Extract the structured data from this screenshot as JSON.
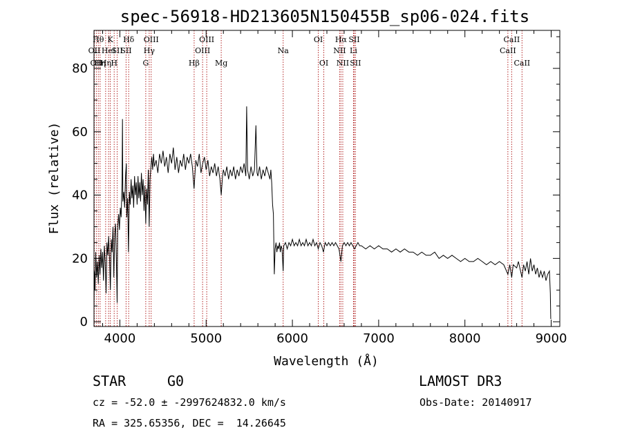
{
  "chart_data": {
    "type": "line",
    "title": "spec-56918-HD213605N150455B_sp06-024.fits",
    "xlabel": "Wavelength (Å)",
    "ylabel": "Flux (relative)",
    "xlim": [
      3700,
      9100
    ],
    "ylim": [
      -1.5,
      92
    ],
    "xticks": [
      4000,
      5000,
      6000,
      7000,
      8000,
      9000
    ],
    "yticks": [
      0,
      20,
      40,
      60,
      80
    ],
    "grid": false,
    "series": [
      {
        "values": [
          [
            3700,
            4
          ],
          [
            3705,
            16
          ],
          [
            3712,
            10
          ],
          [
            3720,
            22
          ],
          [
            3730,
            14
          ],
          [
            3740,
            19
          ],
          [
            3750,
            12
          ],
          [
            3760,
            21
          ],
          [
            3770,
            15
          ],
          [
            3780,
            23
          ],
          [
            3790,
            17
          ],
          [
            3800,
            22
          ],
          [
            3810,
            13
          ],
          [
            3820,
            24
          ],
          [
            3830,
            19
          ],
          [
            3840,
            9
          ],
          [
            3850,
            25
          ],
          [
            3860,
            21
          ],
          [
            3870,
            27
          ],
          [
            3880,
            20
          ],
          [
            3890,
            10
          ],
          [
            3900,
            26
          ],
          [
            3910,
            22
          ],
          [
            3920,
            30
          ],
          [
            3930,
            14
          ],
          [
            3940,
            28
          ],
          [
            3950,
            31
          ],
          [
            3960,
            18
          ],
          [
            3968,
            6
          ],
          [
            3975,
            30
          ],
          [
            3985,
            34
          ],
          [
            3995,
            29
          ],
          [
            4005,
            36
          ],
          [
            4015,
            33
          ],
          [
            4025,
            44
          ],
          [
            4030,
            64
          ],
          [
            4035,
            38
          ],
          [
            4045,
            41
          ],
          [
            4055,
            36
          ],
          [
            4065,
            46
          ],
          [
            4075,
            50
          ],
          [
            4080,
            33
          ],
          [
            4090,
            39
          ],
          [
            4100,
            22
          ],
          [
            4110,
            41
          ],
          [
            4120,
            37
          ],
          [
            4130,
            45
          ],
          [
            4140,
            39
          ],
          [
            4150,
            43
          ],
          [
            4160,
            36
          ],
          [
            4170,
            46
          ],
          [
            4180,
            40
          ],
          [
            4190,
            44
          ],
          [
            4200,
            37
          ],
          [
            4210,
            46
          ],
          [
            4220,
            39
          ],
          [
            4230,
            44
          ],
          [
            4240,
            38
          ],
          [
            4250,
            47
          ],
          [
            4260,
            40
          ],
          [
            4270,
            45
          ],
          [
            4280,
            35
          ],
          [
            4290,
            43
          ],
          [
            4300,
            31
          ],
          [
            4310,
            42
          ],
          [
            4320,
            37
          ],
          [
            4330,
            48
          ],
          [
            4340,
            30
          ],
          [
            4350,
            45
          ],
          [
            4360,
            49
          ],
          [
            4370,
            52
          ],
          [
            4380,
            48
          ],
          [
            4390,
            53
          ],
          [
            4400,
            49
          ],
          [
            4420,
            51
          ],
          [
            4440,
            47
          ],
          [
            4460,
            53
          ],
          [
            4480,
            50
          ],
          [
            4500,
            54
          ],
          [
            4520,
            49
          ],
          [
            4540,
            52
          ],
          [
            4560,
            47
          ],
          [
            4580,
            53
          ],
          [
            4600,
            50
          ],
          [
            4620,
            55
          ],
          [
            4640,
            48
          ],
          [
            4660,
            52
          ],
          [
            4680,
            47
          ],
          [
            4700,
            51
          ],
          [
            4720,
            49
          ],
          [
            4740,
            53
          ],
          [
            4760,
            48
          ],
          [
            4780,
            52
          ],
          [
            4800,
            50
          ],
          [
            4820,
            53
          ],
          [
            4840,
            49
          ],
          [
            4860,
            42
          ],
          [
            4880,
            51
          ],
          [
            4900,
            49
          ],
          [
            4920,
            53
          ],
          [
            4940,
            47
          ],
          [
            4960,
            50
          ],
          [
            4980,
            52
          ],
          [
            5000,
            48
          ],
          [
            5020,
            51
          ],
          [
            5040,
            46
          ],
          [
            5060,
            49
          ],
          [
            5080,
            47
          ],
          [
            5100,
            50
          ],
          [
            5120,
            46
          ],
          [
            5140,
            49
          ],
          [
            5160,
            45
          ],
          [
            5175,
            40
          ],
          [
            5190,
            46
          ],
          [
            5200,
            48
          ],
          [
            5220,
            46
          ],
          [
            5240,
            49
          ],
          [
            5260,
            45
          ],
          [
            5280,
            48
          ],
          [
            5300,
            46
          ],
          [
            5320,
            49
          ],
          [
            5340,
            45
          ],
          [
            5360,
            48
          ],
          [
            5380,
            46
          ],
          [
            5400,
            49
          ],
          [
            5420,
            47
          ],
          [
            5440,
            50
          ],
          [
            5460,
            46
          ],
          [
            5470,
            68
          ],
          [
            5480,
            48
          ],
          [
            5500,
            45
          ],
          [
            5520,
            49
          ],
          [
            5540,
            46
          ],
          [
            5560,
            48
          ],
          [
            5577,
            62
          ],
          [
            5590,
            47
          ],
          [
            5600,
            46
          ],
          [
            5620,
            49
          ],
          [
            5640,
            45
          ],
          [
            5660,
            48
          ],
          [
            5680,
            46
          ],
          [
            5700,
            49
          ],
          [
            5720,
            47
          ],
          [
            5740,
            45
          ],
          [
            5750,
            48
          ],
          [
            5760,
            44
          ],
          [
            5770,
            37
          ],
          [
            5780,
            34
          ],
          [
            5790,
            15
          ],
          [
            5800,
            23
          ],
          [
            5810,
            25
          ],
          [
            5820,
            22
          ],
          [
            5830,
            24
          ],
          [
            5840,
            23
          ],
          [
            5850,
            25
          ],
          [
            5860,
            22
          ],
          [
            5870,
            24
          ],
          [
            5880,
            23
          ],
          [
            5893,
            16
          ],
          [
            5900,
            24
          ],
          [
            5920,
            25
          ],
          [
            5940,
            23
          ],
          [
            5960,
            25
          ],
          [
            5980,
            24
          ],
          [
            6000,
            26
          ],
          [
            6020,
            24
          ],
          [
            6040,
            25
          ],
          [
            6060,
            24
          ],
          [
            6080,
            26
          ],
          [
            6100,
            24
          ],
          [
            6120,
            25
          ],
          [
            6140,
            24
          ],
          [
            6160,
            26
          ],
          [
            6180,
            24
          ],
          [
            6200,
            25
          ],
          [
            6220,
            24
          ],
          [
            6240,
            26
          ],
          [
            6260,
            24
          ],
          [
            6280,
            25
          ],
          [
            6300,
            23
          ],
          [
            6320,
            25
          ],
          [
            6340,
            24
          ],
          [
            6360,
            22
          ],
          [
            6380,
            25
          ],
          [
            6400,
            24
          ],
          [
            6420,
            25
          ],
          [
            6440,
            24
          ],
          [
            6460,
            25
          ],
          [
            6480,
            24
          ],
          [
            6500,
            25
          ],
          [
            6520,
            24
          ],
          [
            6540,
            23
          ],
          [
            6563,
            19
          ],
          [
            6580,
            24
          ],
          [
            6600,
            25
          ],
          [
            6620,
            24
          ],
          [
            6640,
            25
          ],
          [
            6660,
            24
          ],
          [
            6680,
            25
          ],
          [
            6700,
            24
          ],
          [
            6720,
            23
          ],
          [
            6740,
            24
          ],
          [
            6760,
            25
          ],
          [
            6780,
            24
          ],
          [
            6800,
            24
          ],
          [
            6850,
            23
          ],
          [
            6900,
            24
          ],
          [
            6950,
            23
          ],
          [
            7000,
            24
          ],
          [
            7050,
            23
          ],
          [
            7100,
            23
          ],
          [
            7150,
            22
          ],
          [
            7200,
            23
          ],
          [
            7250,
            22
          ],
          [
            7300,
            23
          ],
          [
            7350,
            22
          ],
          [
            7400,
            22
          ],
          [
            7450,
            21
          ],
          [
            7500,
            22
          ],
          [
            7550,
            21
          ],
          [
            7600,
            21
          ],
          [
            7650,
            22
          ],
          [
            7700,
            20
          ],
          [
            7750,
            21
          ],
          [
            7800,
            20
          ],
          [
            7850,
            21
          ],
          [
            7900,
            20
          ],
          [
            7950,
            19
          ],
          [
            8000,
            20
          ],
          [
            8050,
            19
          ],
          [
            8100,
            19
          ],
          [
            8150,
            20
          ],
          [
            8200,
            19
          ],
          [
            8250,
            18
          ],
          [
            8300,
            19
          ],
          [
            8350,
            18
          ],
          [
            8400,
            19
          ],
          [
            8450,
            18
          ],
          [
            8498,
            15
          ],
          [
            8520,
            18
          ],
          [
            8542,
            14
          ],
          [
            8560,
            18
          ],
          [
            8600,
            17
          ],
          [
            8620,
            19
          ],
          [
            8662,
            14
          ],
          [
            8680,
            18
          ],
          [
            8700,
            16
          ],
          [
            8720,
            19
          ],
          [
            8740,
            15
          ],
          [
            8760,
            20
          ],
          [
            8780,
            16
          ],
          [
            8800,
            18
          ],
          [
            8820,
            15
          ],
          [
            8840,
            17
          ],
          [
            8860,
            14
          ],
          [
            8880,
            16
          ],
          [
            8900,
            14
          ],
          [
            8920,
            16
          ],
          [
            8940,
            13
          ],
          [
            8960,
            15
          ],
          [
            8980,
            16
          ],
          [
            8990,
            9
          ],
          [
            8995,
            1
          ],
          [
            9000,
            1
          ]
        ]
      }
    ],
    "lines": [
      {
        "w": 3704,
        "label": "OII",
        "row": 2
      },
      {
        "w": 3727,
        "label": "OII",
        "row": 3
      },
      {
        "w": 3750,
        "label": "Hθ",
        "row": 1
      },
      {
        "w": 3771,
        "label": "Hη",
        "row": 3
      },
      {
        "w": 3835,
        "label": "Hη",
        "row": 3
      },
      {
        "w": 3869,
        "label": "HeI",
        "row": 2
      },
      {
        "w": 3889,
        "label": "K",
        "row": 1
      },
      {
        "w": 3934,
        "label": "H",
        "row": 3
      },
      {
        "w": 3969,
        "label": "SII",
        "row": 2
      },
      {
        "w": 4072,
        "label": "SII",
        "row": 2
      },
      {
        "w": 4102,
        "label": "Hδ",
        "row": 1
      },
      {
        "w": 4300,
        "label": "G",
        "row": 3
      },
      {
        "w": 4340,
        "label": "Hγ",
        "row": 2
      },
      {
        "w": 4363,
        "label": "OIII",
        "row": 1
      },
      {
        "w": 4861,
        "label": "Hβ",
        "row": 3
      },
      {
        "w": 4959,
        "label": "OIII",
        "row": 2
      },
      {
        "w": 5007,
        "label": "OIII",
        "row": 1
      },
      {
        "w": 5175,
        "label": "Mg",
        "row": 3
      },
      {
        "w": 5893,
        "label": "Na",
        "row": 2
      },
      {
        "w": 6300,
        "label": "OI",
        "row": 1
      },
      {
        "w": 6364,
        "label": "OI",
        "row": 3
      },
      {
        "w": 6548,
        "label": "NII",
        "row": 2
      },
      {
        "w": 6563,
        "label": "Hα",
        "row": 1
      },
      {
        "w": 6584,
        "label": "NII",
        "row": 3
      },
      {
        "w": 6708,
        "label": "Li",
        "row": 2
      },
      {
        "w": 6716,
        "label": "SII",
        "row": 1
      },
      {
        "w": 6731,
        "label": "SII",
        "row": 3
      },
      {
        "w": 8498,
        "label": "CaII",
        "row": 2
      },
      {
        "w": 8542,
        "label": "CaII",
        "row": 1
      },
      {
        "w": 8662,
        "label": "CaII",
        "row": 3
      }
    ],
    "colors": {
      "spectrum": "#000000",
      "line_markers": "#b22222"
    }
  },
  "info": {
    "object_class": "STAR",
    "subclass": "G0",
    "survey": "LAMOST DR3",
    "cz": "cz = -52.0 ± -2997624832.0 km/s",
    "obs_date": "Obs-Date: 20140917",
    "coords": "RA = 325.65356, DEC =  14.26645"
  }
}
